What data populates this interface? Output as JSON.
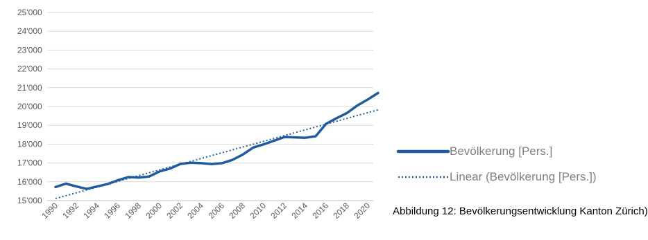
{
  "chart_data": {
    "type": "line",
    "x": [
      1990,
      1991,
      1992,
      1993,
      1994,
      1995,
      1996,
      1997,
      1998,
      1999,
      2000,
      2001,
      2002,
      2003,
      2004,
      2005,
      2006,
      2007,
      2008,
      2009,
      2010,
      2011,
      2012,
      2013,
      2014,
      2015,
      2016,
      2017,
      2018,
      2019,
      2020,
      2021
    ],
    "series": [
      {
        "name": "Bevölkerung [Pers.]",
        "values": [
          15720,
          15900,
          15750,
          15620,
          15750,
          15880,
          16080,
          16250,
          16220,
          16280,
          16550,
          16700,
          16950,
          17010,
          16990,
          16940,
          16990,
          17160,
          17450,
          17820,
          17990,
          18180,
          18380,
          18360,
          18340,
          18420,
          19080,
          19380,
          19650,
          20050,
          20370,
          20720
        ],
        "color": "#1f5b9e",
        "style": "solid"
      },
      {
        "name": "Linear (Bevölkerung [Pers.])",
        "trendline_of": 0,
        "color": "#1f5b9e",
        "style": "dotted"
      }
    ],
    "y_tick_labels": [
      "15'000",
      "16'000",
      "17'000",
      "18'000",
      "19'000",
      "20'000",
      "21'000",
      "22'000",
      "23'000",
      "24'000",
      "25'000"
    ],
    "x_tick_labels": [
      "1990",
      "1992",
      "1994",
      "1996",
      "1998",
      "2000",
      "2002",
      "2004",
      "2006",
      "2008",
      "2010",
      "2012",
      "2014",
      "2016",
      "2018",
      "2020"
    ],
    "ylim": [
      15000,
      25000
    ],
    "xlim": [
      1990,
      2021
    ],
    "grid": true,
    "legend_position": "right",
    "caption": "Abbildung 12: Bevölkerungsentwicklung Kanton Zürich)"
  }
}
